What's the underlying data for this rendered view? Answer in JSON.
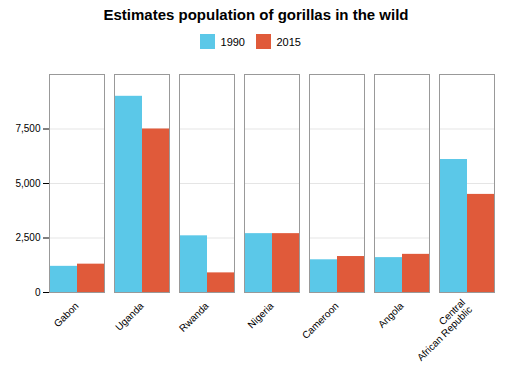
{
  "chart_data": {
    "type": "bar",
    "title": "Estimates population of gorillas in the wild",
    "categories": [
      "Gabon",
      "Uganda",
      "Rwanda",
      "Nigeria",
      "Cameroon",
      "Angola",
      "Central\nAfrican Republic"
    ],
    "series": [
      {
        "name": "1990",
        "color": "#5BC8E8",
        "values": [
          1200,
          9000,
          2600,
          2700,
          1500,
          1600,
          6100
        ]
      },
      {
        "name": "2015",
        "color": "#E05A3A",
        "values": [
          1300,
          7500,
          900,
          2700,
          1650,
          1750,
          4500
        ]
      }
    ],
    "ylim": [
      0,
      10000
    ],
    "yticks": [
      0,
      {
        "value": 2500,
        "label": "2,500"
      },
      {
        "value": 5000,
        "label": "5,000"
      },
      {
        "value": 7500,
        "label": "7,500"
      }
    ],
    "grid": true,
    "legend": "top"
  }
}
